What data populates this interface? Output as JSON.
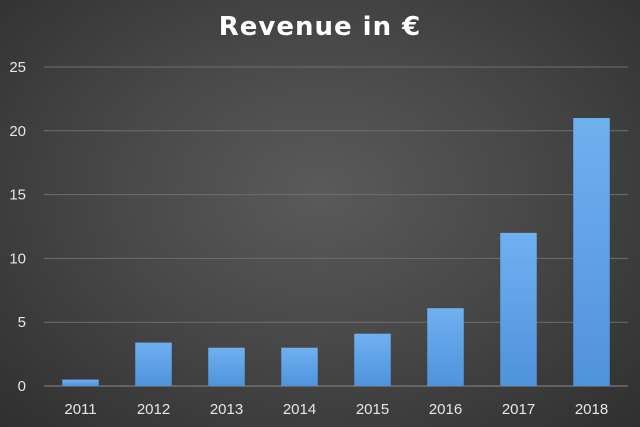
{
  "chart_data": {
    "type": "bar",
    "title": "Revenue in €",
    "xlabel": "",
    "ylabel": "",
    "categories": [
      "2011",
      "2012",
      "2013",
      "2014",
      "2015",
      "2016",
      "2017",
      "2018"
    ],
    "values": [
      0.5,
      3.4,
      3.0,
      3.0,
      4.1,
      6.1,
      12.0,
      21.0
    ],
    "ylim": [
      0,
      25
    ],
    "yticks": [
      0,
      5,
      10,
      15,
      20,
      25
    ],
    "grid": true,
    "legend": "none",
    "bar_color": "#4f93dc",
    "bar_color_light": "#6fb0f0"
  }
}
